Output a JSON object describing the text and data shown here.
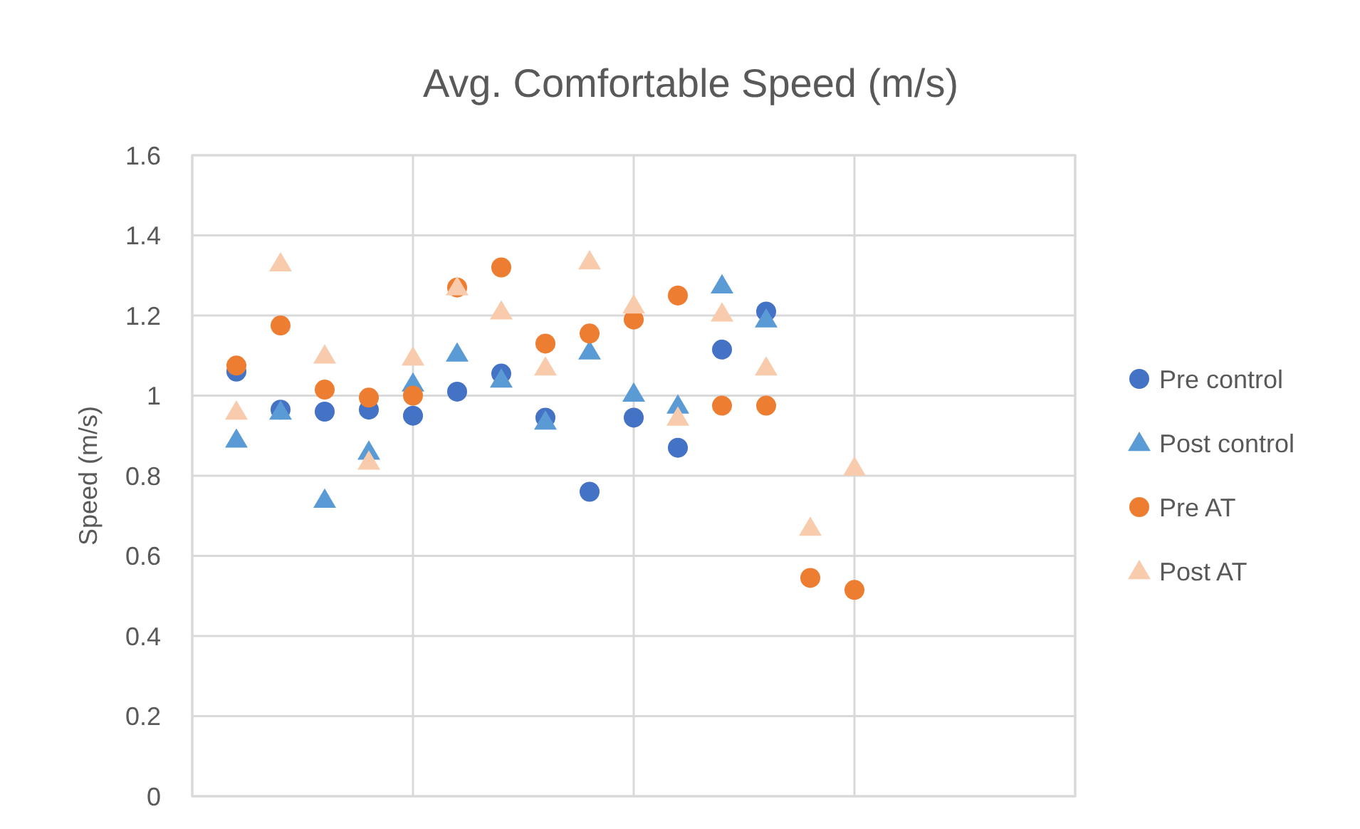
{
  "chart_data": {
    "type": "scatter",
    "title": "Avg. Comfortable Speed (m/s)",
    "ylabel": "Speed (m/s)",
    "categories": [
      null,
      null,
      null,
      null,
      null,
      null,
      null,
      null,
      null,
      null,
      null,
      null,
      null,
      null,
      null,
      null,
      null,
      null,
      null
    ],
    "ylim": [
      0,
      1.6
    ],
    "yticks": [
      0,
      0.2,
      0.4,
      0.6,
      0.8,
      1,
      1.2,
      1.4,
      1.6
    ],
    "grid": true,
    "legend": "right",
    "series": [
      {
        "name": "Pre control",
        "color": "#4472c4",
        "marker": "circle",
        "values": [
          1.06,
          0.965,
          0.96,
          0.965,
          0.95,
          1.01,
          1.055,
          0.945,
          0.76,
          0.945,
          0.87,
          1.115,
          1.21,
          null,
          null,
          null,
          null,
          null,
          null
        ]
      },
      {
        "name": "Post control",
        "color": "#5b9bd5",
        "marker": "triangle",
        "values": [
          0.89,
          0.96,
          0.74,
          0.86,
          1.03,
          1.105,
          1.04,
          0.935,
          1.11,
          1.005,
          0.975,
          1.275,
          1.19,
          null,
          null,
          null,
          null,
          null,
          null
        ]
      },
      {
        "name": "Pre AT",
        "color": "#ed7d31",
        "marker": "circle",
        "values": [
          1.075,
          1.175,
          1.015,
          0.995,
          1.0,
          1.27,
          1.32,
          1.13,
          1.155,
          1.19,
          1.25,
          0.975,
          0.975,
          0.545,
          0.515,
          null,
          null,
          null,
          null
        ]
      },
      {
        "name": "Post AT",
        "color": "#f8cbad",
        "marker": "triangle",
        "values": [
          0.96,
          1.33,
          1.1,
          0.835,
          1.095,
          1.27,
          1.21,
          1.07,
          1.335,
          1.225,
          0.945,
          1.205,
          1.07,
          0.67,
          0.82,
          null,
          null,
          null,
          null
        ]
      }
    ]
  }
}
